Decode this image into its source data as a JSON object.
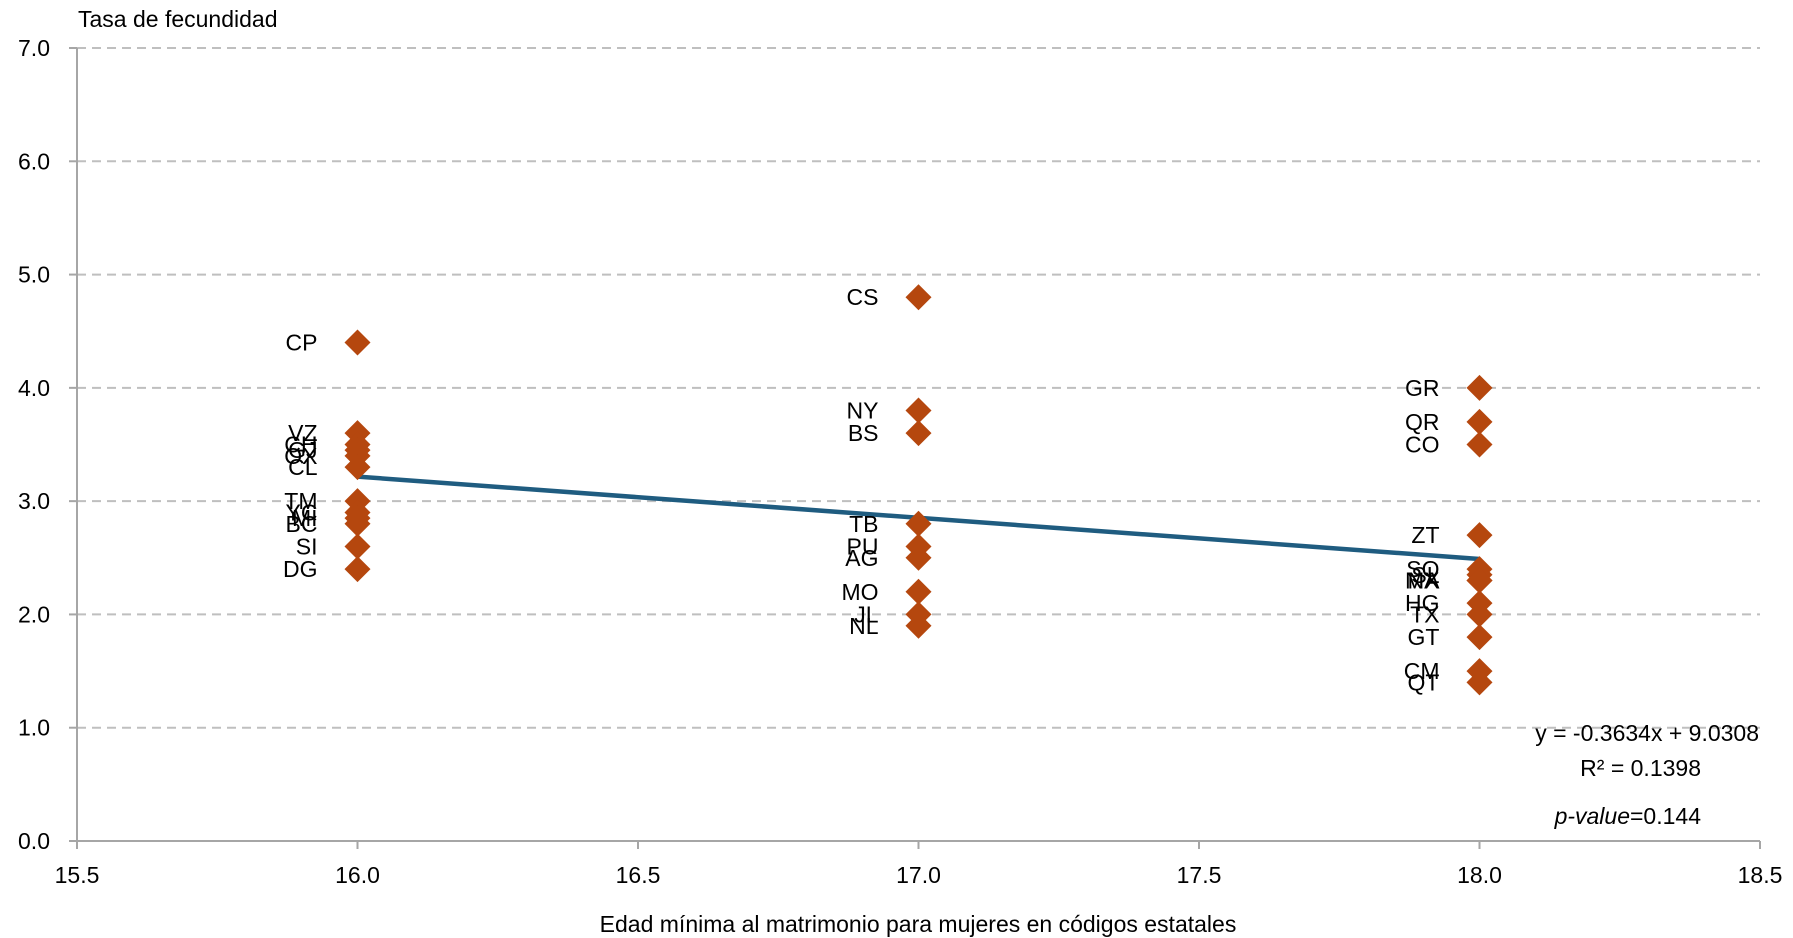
{
  "chart_data": {
    "type": "scatter",
    "ylabel": "Tasa de fecundidad",
    "xlabel": "Edad mínima al matrimonio  para mujeres en códigos estatales",
    "xlim": [
      15.5,
      18.5
    ],
    "ylim": [
      0.0,
      7.0
    ],
    "x_ticks": [
      "15.5",
      "16.0",
      "16.5",
      "17.0",
      "17.5",
      "18.0",
      "18.5"
    ],
    "y_ticks": [
      "0.0",
      "1.0",
      "2.0",
      "3.0",
      "4.0",
      "5.0",
      "6.0",
      "7.0"
    ],
    "grid": "horizontal-dashed",
    "colors": {
      "marker": "#B5470E",
      "trendline": "#1F5C80",
      "grid": "#BFBFBF",
      "axis": "#A6A6A6"
    },
    "points": [
      {
        "label": "CP",
        "x": 16.0,
        "y": 4.4
      },
      {
        "label": "VZ",
        "x": 16.0,
        "y": 3.6
      },
      {
        "label": "CH",
        "x": 16.0,
        "y": 3.5
      },
      {
        "label": "GJ",
        "x": 16.0,
        "y": 3.45
      },
      {
        "label": "OX",
        "x": 16.0,
        "y": 3.4
      },
      {
        "label": "CL",
        "x": 16.0,
        "y": 3.3
      },
      {
        "label": "TM",
        "x": 16.0,
        "y": 3.0
      },
      {
        "label": "YC",
        "x": 16.0,
        "y": 2.9
      },
      {
        "label": "MI",
        "x": 16.0,
        "y": 2.85
      },
      {
        "label": "BC",
        "x": 16.0,
        "y": 2.8
      },
      {
        "label": "SI",
        "x": 16.0,
        "y": 2.6
      },
      {
        "label": "DG",
        "x": 16.0,
        "y": 2.4
      },
      {
        "label": "CS",
        "x": 17.0,
        "y": 4.8
      },
      {
        "label": "NY",
        "x": 17.0,
        "y": 3.8
      },
      {
        "label": "BS",
        "x": 17.0,
        "y": 3.6
      },
      {
        "label": "TB",
        "x": 17.0,
        "y": 2.8
      },
      {
        "label": "PU",
        "x": 17.0,
        "y": 2.6
      },
      {
        "label": "AG",
        "x": 17.0,
        "y": 2.5
      },
      {
        "label": "MO",
        "x": 17.0,
        "y": 2.2
      },
      {
        "label": "JL",
        "x": 17.0,
        "y": 2.0
      },
      {
        "label": "NL",
        "x": 17.0,
        "y": 1.9
      },
      {
        "label": "GR",
        "x": 18.0,
        "y": 4.0
      },
      {
        "label": "QR",
        "x": 18.0,
        "y": 3.7
      },
      {
        "label": "CO",
        "x": 18.0,
        "y": 3.5
      },
      {
        "label": "ZT",
        "x": 18.0,
        "y": 2.7
      },
      {
        "label": "SO",
        "x": 18.0,
        "y": 2.4
      },
      {
        "label": "SL",
        "x": 18.0,
        "y": 2.35
      },
      {
        "label": "MX",
        "x": 18.0,
        "y": 2.3
      },
      {
        "label": "NA",
        "x": 18.0,
        "y": 2.3
      },
      {
        "label": "HG",
        "x": 18.0,
        "y": 2.1
      },
      {
        "label": "TX",
        "x": 18.0,
        "y": 2.0
      },
      {
        "label": "GT",
        "x": 18.0,
        "y": 1.8
      },
      {
        "label": "CM",
        "x": 18.0,
        "y": 1.5
      },
      {
        "label": "QT",
        "x": 18.0,
        "y": 1.4
      }
    ],
    "trendline": {
      "x": [
        16.0,
        18.0
      ],
      "y": [
        3.2164,
        2.4896
      ]
    },
    "annotations": {
      "equation": "y = -0.3634x + 9.0308",
      "r2": "R² = 0.1398",
      "pvalue_label": "p-value",
      "pvalue_value": "=0.144"
    }
  }
}
